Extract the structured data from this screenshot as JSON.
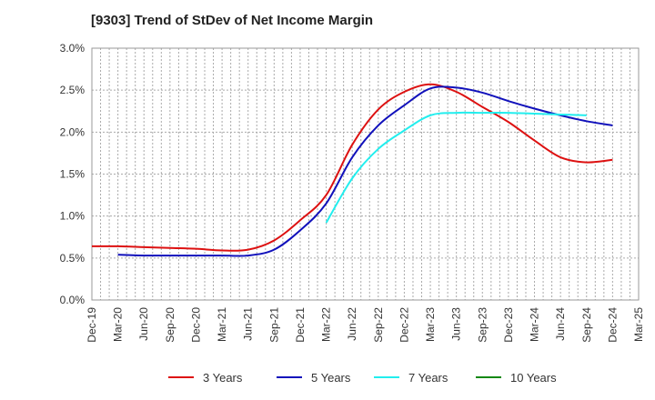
{
  "chart_data": {
    "type": "line",
    "title": "[9303]  Trend of StDev of Net Income Margin",
    "xlabel": "",
    "ylabel": "",
    "ylim": [
      0,
      3.0
    ],
    "yticks": [
      "0.0%",
      "0.5%",
      "1.0%",
      "1.5%",
      "2.0%",
      "2.5%",
      "3.0%"
    ],
    "xticks": [
      "Dec-19",
      "Mar-20",
      "Jun-20",
      "Sep-20",
      "Dec-20",
      "Mar-21",
      "Jun-21",
      "Sep-21",
      "Dec-21",
      "Mar-22",
      "Jun-22",
      "Sep-22",
      "Dec-22",
      "Mar-23",
      "Jun-23",
      "Sep-23",
      "Dec-23",
      "Mar-24",
      "Jun-24",
      "Sep-24",
      "Dec-24",
      "Mar-25"
    ],
    "grid": true,
    "legend_position": "bottom",
    "series": [
      {
        "name": "3 Years",
        "color": "#dd1111",
        "start_index": 0,
        "values": [
          0.64,
          0.64,
          0.63,
          0.62,
          0.61,
          0.59,
          0.6,
          0.71,
          0.95,
          1.25,
          1.85,
          2.27,
          2.48,
          2.57,
          2.48,
          2.3,
          2.12,
          1.9,
          1.7,
          1.64,
          1.67
        ]
      },
      {
        "name": "5 Years",
        "color": "#1111bb",
        "start_index": 1,
        "values": [
          0.54,
          0.53,
          0.53,
          0.53,
          0.53,
          0.53,
          0.6,
          0.83,
          1.15,
          1.7,
          2.08,
          2.32,
          2.52,
          2.53,
          2.47,
          2.37,
          2.28,
          2.2,
          2.13,
          2.08
        ]
      },
      {
        "name": "7 Years",
        "color": "#22eeee",
        "start_index": 9,
        "values": [
          0.92,
          1.45,
          1.8,
          2.02,
          2.2,
          2.23,
          2.23,
          2.23,
          2.22,
          2.21,
          2.2
        ]
      },
      {
        "name": "10 Years",
        "color": "#118811",
        "start_index": 0,
        "values": []
      }
    ]
  }
}
